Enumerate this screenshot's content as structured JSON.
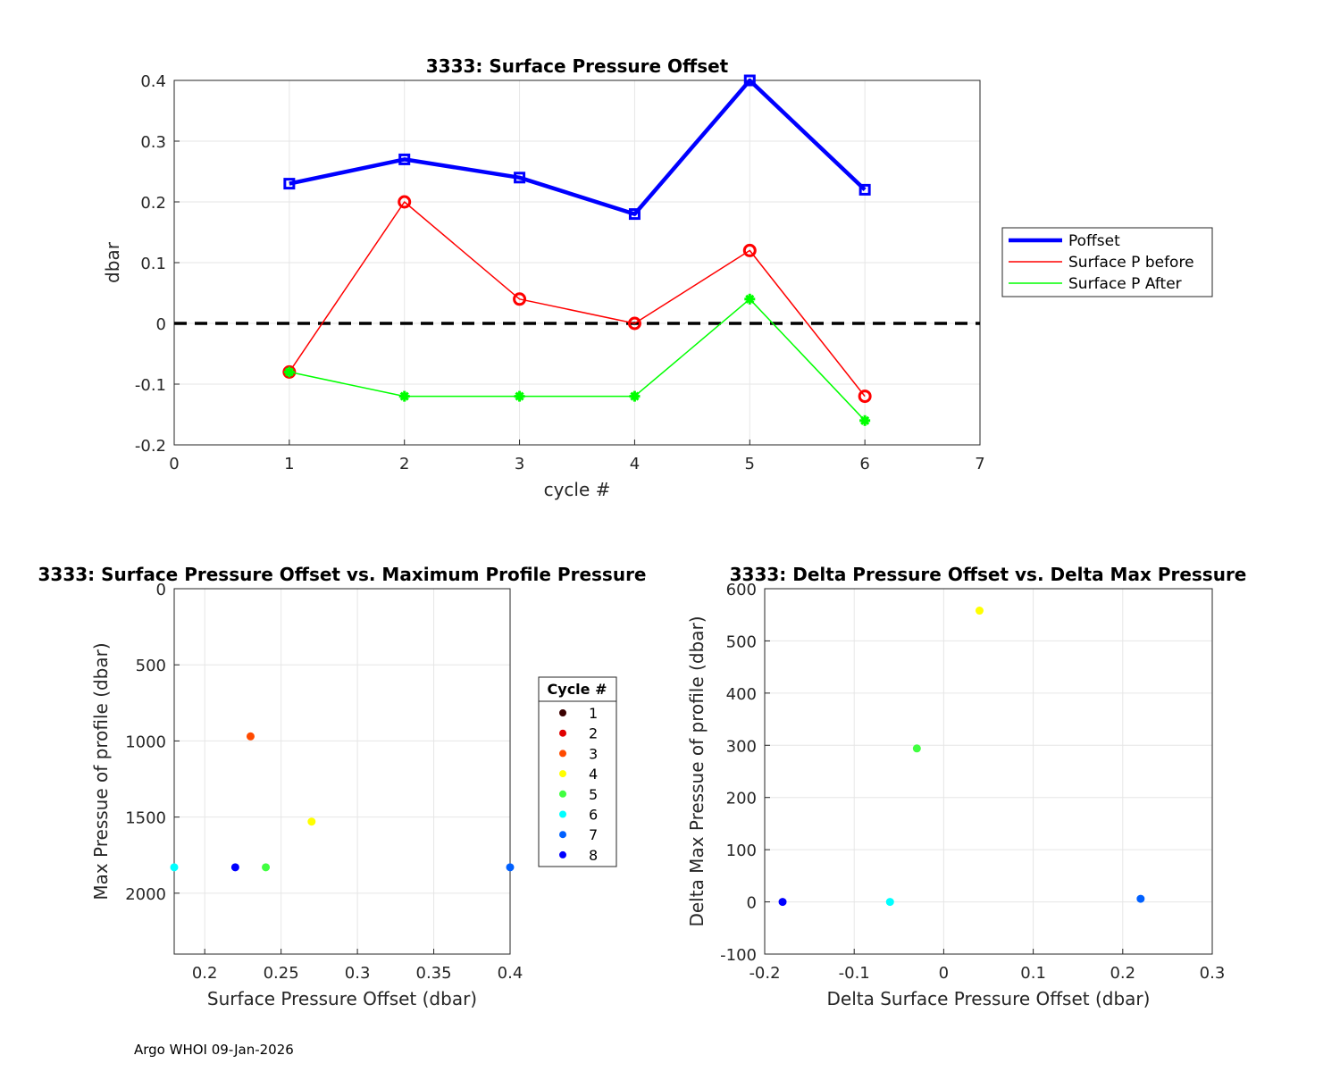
{
  "footer": "Argo WHOI 09-Jan-2026",
  "chart_data": [
    {
      "type": "line",
      "title": "3333: Surface Pressure Offset",
      "xlabel": "cycle #",
      "ylabel": "dbar",
      "xlim": [
        0,
        7
      ],
      "ylim": [
        -0.2,
        0.4
      ],
      "xticks": [
        "0",
        "1",
        "2",
        "3",
        "4",
        "5",
        "6",
        "7"
      ],
      "yticks": [
        "-0.2",
        "-0.1",
        "0",
        "0.1",
        "0.2",
        "0.3",
        "0.4"
      ],
      "grid": true,
      "legend_position": "outside-right",
      "reference_line": {
        "y": 0,
        "style": "dashed",
        "color": "#000000"
      },
      "x": [
        1,
        2,
        3,
        4,
        5,
        6
      ],
      "series": [
        {
          "name": "Poffset",
          "color": "#0000ff",
          "marker": "square",
          "values": [
            0.23,
            0.27,
            0.24,
            0.18,
            0.4,
            0.22
          ]
        },
        {
          "name": "Surface P before",
          "color": "#ff0000",
          "marker": "circle",
          "values": [
            -0.08,
            0.2,
            0.04,
            0.0,
            0.12,
            -0.12
          ]
        },
        {
          "name": "Surface P After",
          "color": "#00ff00",
          "marker": "star",
          "values": [
            -0.08,
            -0.12,
            -0.12,
            -0.12,
            0.04,
            -0.16
          ]
        }
      ]
    },
    {
      "type": "scatter",
      "title": "3333: Surface Pressure Offset vs. Maximum Profile Pressure",
      "xlabel": "Surface Pressure Offset (dbar)",
      "ylabel": "Max Pressue of profile (dbar)",
      "xlim": [
        0.18,
        0.4
      ],
      "ylim": [
        0,
        2400
      ],
      "y_reversed": true,
      "xticks": [
        "0.2",
        "0.25",
        "0.3",
        "0.35",
        "0.4"
      ],
      "yticks": [
        "0",
        "500",
        "1000",
        "1500",
        "2000"
      ],
      "grid": true,
      "legend_title": "Cycle #",
      "legend_labels": [
        "1",
        "2",
        "3",
        "4",
        "5",
        "6",
        "7",
        "8"
      ],
      "legend_colors": [
        "#3a0000",
        "#e00000",
        "#ff4a00",
        "#ffff00",
        "#40ff40",
        "#00ffff",
        "#0060ff",
        "#0000ff"
      ],
      "points": [
        {
          "x": 0.23,
          "y": 970,
          "color": "#ff4a00"
        },
        {
          "x": 0.27,
          "y": 1530,
          "color": "#ffff00"
        },
        {
          "x": 0.24,
          "y": 1830,
          "color": "#40ff40"
        },
        {
          "x": 0.18,
          "y": 1830,
          "color": "#00ffff"
        },
        {
          "x": 0.4,
          "y": 1830,
          "color": "#0060ff"
        },
        {
          "x": 0.22,
          "y": 1830,
          "color": "#0000ff"
        }
      ]
    },
    {
      "type": "scatter",
      "title": "3333: Delta Pressure Offset vs. Delta Max Pressure",
      "xlabel": "Delta Surface Pressure Offset (dbar)",
      "ylabel": "Delta Max Pressue of profile (dbar)",
      "xlim": [
        -0.2,
        0.3
      ],
      "ylim": [
        -100,
        600
      ],
      "xticks": [
        "-0.2",
        "-0.1",
        "0",
        "0.1",
        "0.2",
        "0.3"
      ],
      "yticks": [
        "-100",
        "0",
        "100",
        "200",
        "300",
        "400",
        "500",
        "600"
      ],
      "grid": true,
      "points": [
        {
          "x": 0.04,
          "y": 558,
          "color": "#ffff00"
        },
        {
          "x": -0.03,
          "y": 294,
          "color": "#40ff40"
        },
        {
          "x": -0.06,
          "y": 0,
          "color": "#00ffff"
        },
        {
          "x": 0.22,
          "y": 6,
          "color": "#0060ff"
        },
        {
          "x": -0.18,
          "y": 0,
          "color": "#0000ff"
        }
      ]
    }
  ]
}
